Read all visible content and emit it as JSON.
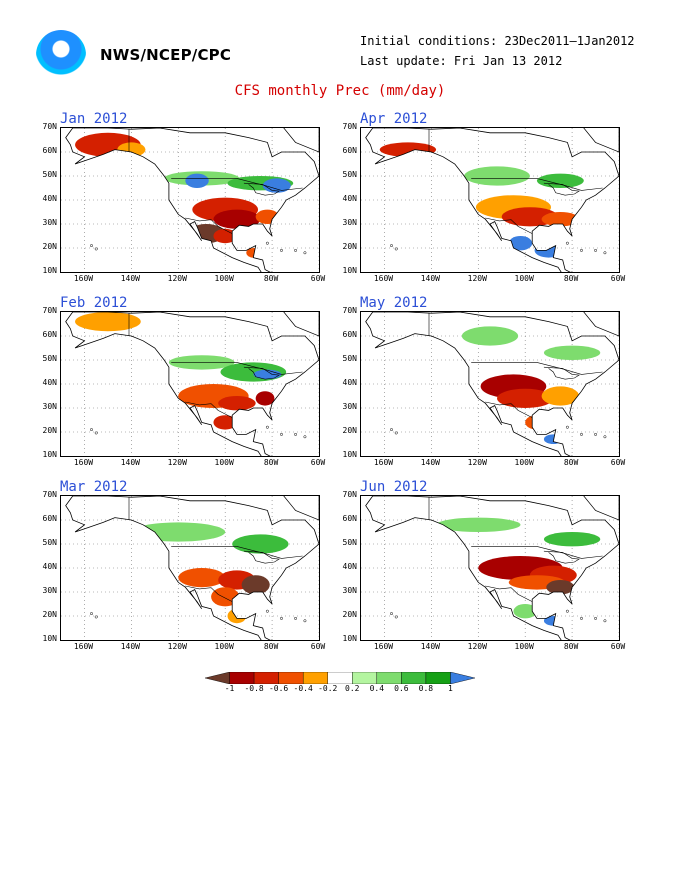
{
  "header": {
    "org": "NWS/NCEP/CPC",
    "initial_conditions": "Initial conditions: 23Dec2011–1Jan2012",
    "last_update": "Last update: Fri Jan 13 2012",
    "title": "CFS monthly Prec (mm/day)"
  },
  "panels": [
    {
      "title": "Jan 2012"
    },
    {
      "title": "Apr 2012"
    },
    {
      "title": "Feb 2012"
    },
    {
      "title": "May 2012"
    },
    {
      "title": "Mar 2012"
    },
    {
      "title": "Jun 2012"
    }
  ],
  "lat_labels": [
    "70N",
    "60N",
    "50N",
    "40N",
    "30N",
    "20N",
    "10N"
  ],
  "lon_labels": [
    "160W",
    "140W",
    "120W",
    "100W",
    "80W",
    "60W"
  ],
  "colorbar": {
    "ticks": [
      "-1",
      "-0.8",
      "-0.6",
      "-0.4",
      "-0.2",
      "0.2",
      "0.4",
      "0.6",
      "0.8",
      "1"
    ],
    "colors": [
      "#6b3a2a",
      "#a80000",
      "#d42000",
      "#f05000",
      "#ffa000",
      "#ffffff",
      "#b4f5a0",
      "#7edc6e",
      "#3cbc3c",
      "#15a015",
      "#3a7ee0"
    ]
  }
}
